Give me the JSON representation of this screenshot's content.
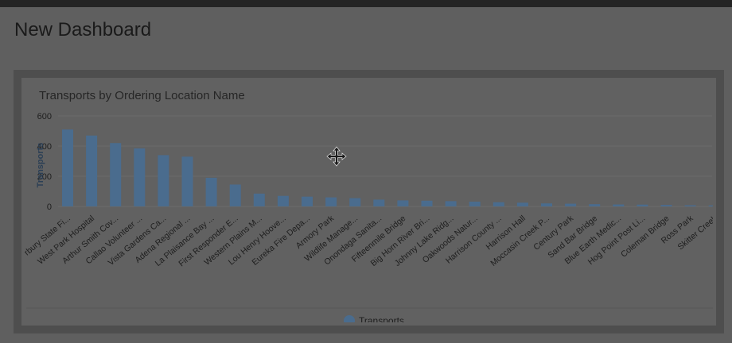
{
  "dashboard": {
    "title": "New Dashboard"
  },
  "widget": {
    "move_icon": "move-arrows-icon"
  },
  "colors": {
    "bar": "#4a6c8e",
    "background": "#5f5f5f",
    "panel": "#616161",
    "text": "#1e1e1e",
    "grid": "#6b6b6b"
  },
  "chart_data": {
    "type": "bar",
    "title": "Transports by Ordering Location Name",
    "xlabel": "",
    "ylabel": "Transports",
    "ylim": [
      0,
      600
    ],
    "yticks": [
      0,
      200,
      400,
      600
    ],
    "grid": true,
    "legend_position": "bottom-center",
    "categories": [
      "rbury State Fi...",
      "West Park Hospital",
      "Arthur Smith Cov...",
      "Callao Volunteer ...",
      "Vista Gardens Ca...",
      "Adena Regional ...",
      "La Plaisance Bay ...",
      "First Responder E...",
      "Western Plains M...",
      "Lou Henry Hoove...",
      "Eureka Fire Depa...",
      "Armory Park",
      "Wildlife Manage...",
      "Onondaga Sanita...",
      "Fifteenmile Bridge",
      "Big Horn River Bri...",
      "Johnny Lake Ridg...",
      "Oakwoods Natur...",
      "Harrison County ...",
      "Harrison Hall",
      "Moccasin Creek P...",
      "Century Park",
      "Sand Bar Bridge",
      "Blue Earth Medic...",
      "Hog Point Post Li...",
      "Coleman Bridge",
      "Ross Park",
      "Skitter Creek",
      "Gar"
    ],
    "series": [
      {
        "name": "Transports",
        "values": [
          510,
          470,
          420,
          385,
          340,
          330,
          190,
          145,
          85,
          70,
          65,
          60,
          55,
          45,
          40,
          38,
          35,
          32,
          28,
          25,
          20,
          18,
          15,
          13,
          12,
          10,
          8,
          7,
          5
        ]
      }
    ]
  }
}
